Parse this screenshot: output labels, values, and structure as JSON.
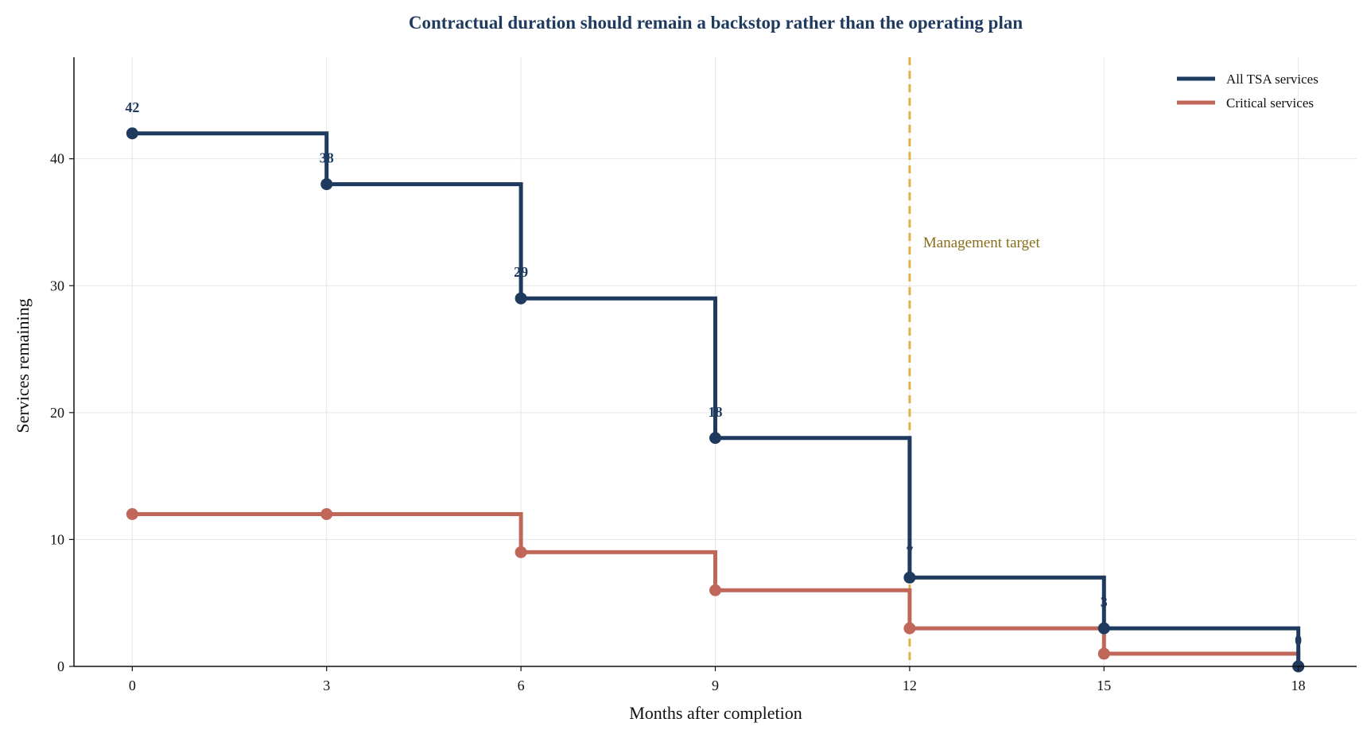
{
  "chart_data": {
    "type": "line",
    "step": "post",
    "title": "Contractual duration should remain a backstop rather than the operating plan",
    "xlabel": "Months after completion",
    "ylabel": "Services remaining",
    "x": [
      0,
      3,
      6,
      9,
      12,
      15,
      18
    ],
    "xticks": [
      "0",
      "3",
      "6",
      "9",
      "12",
      "15",
      "18"
    ],
    "yticks": [
      "0",
      "10",
      "20",
      "30",
      "40"
    ],
    "xlim": [
      -0.9,
      18.9
    ],
    "ylim": [
      0,
      48
    ],
    "grid": true,
    "legend_position": "top-right",
    "series": [
      {
        "name": "All TSA services",
        "values": [
          42,
          38,
          29,
          18,
          7,
          3,
          0
        ],
        "data_labels": [
          "42",
          "38",
          "29",
          "18",
          "7",
          "3",
          "0"
        ],
        "color": "#1f3a5f"
      },
      {
        "name": "Critical services",
        "values": [
          12,
          12,
          9,
          6,
          3,
          1,
          0
        ],
        "color": "#c0675a"
      }
    ],
    "annotations": [
      {
        "type": "vline",
        "x": 12,
        "text": "Management target",
        "color": "#e0b24a",
        "text_color": "#8a6d1a"
      }
    ],
    "colors": {
      "title": "#1f3a5f",
      "grid": "#e6e6e6",
      "axis": "#111111"
    }
  }
}
